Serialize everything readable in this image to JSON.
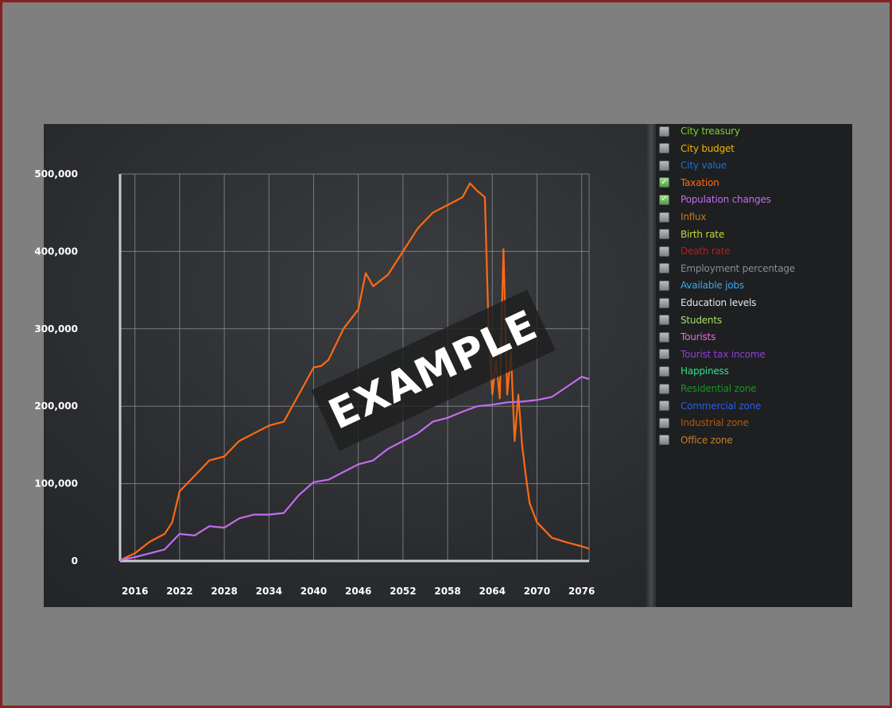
{
  "colors": {
    "frame_border": "#8a1f1f",
    "page_background": "#7f7f7f",
    "chart_background": "#2b2d30",
    "grid": "#8f9398",
    "axis": "#c8ccd0",
    "tick_text": "#ffffff"
  },
  "watermark": {
    "text": "EXAMPLE"
  },
  "legend": {
    "items": [
      {
        "label": "City treasury",
        "color": "#7ed321",
        "checked": false
      },
      {
        "label": "City budget",
        "color": "#f0b400",
        "checked": false
      },
      {
        "label": "City value",
        "color": "#1f6fd6",
        "checked": false
      },
      {
        "label": "Taxation",
        "color": "#ff6a13",
        "checked": true
      },
      {
        "label": "Population changes",
        "color": "#c36cf0",
        "checked": true
      },
      {
        "label": "Influx",
        "color": "#c97a10",
        "checked": false
      },
      {
        "label": "Birth rate",
        "color": "#c8d63a",
        "checked": false
      },
      {
        "label": "Death rate",
        "color": "#c0191d",
        "checked": false
      },
      {
        "label": "Employment percentage",
        "color": "#8a8f94",
        "checked": false
      },
      {
        "label": "Available jobs",
        "color": "#39a9f0",
        "checked": false
      },
      {
        "label": "Education levels",
        "color": "#e6e6e6",
        "checked": false
      },
      {
        "label": "Students",
        "color": "#a7e06a",
        "checked": false
      },
      {
        "label": "Tourists",
        "color": "#f06ad8",
        "checked": false
      },
      {
        "label": "Tourist tax income",
        "color": "#8e3fd1",
        "checked": false
      },
      {
        "label": "Happiness",
        "color": "#33e08c",
        "checked": false
      },
      {
        "label": "Residential zone",
        "color": "#1e8f2a",
        "checked": false
      },
      {
        "label": "Commercial zone",
        "color": "#2a5ee0",
        "checked": false
      },
      {
        "label": "Industrial zone",
        "color": "#b05a14",
        "checked": false
      },
      {
        "label": "Office zone",
        "color": "#c7802a",
        "checked": false
      }
    ]
  },
  "chart_data": {
    "type": "line",
    "title": "",
    "xlabel": "",
    "ylabel": "",
    "xlim": [
      2014,
      2077
    ],
    "ylim": [
      0,
      500000
    ],
    "x_ticks": [
      "2016",
      "2022",
      "2028",
      "2034",
      "2040",
      "2046",
      "2052",
      "2058",
      "2064",
      "2070",
      "2076"
    ],
    "y_ticks": [
      "0",
      "100,000",
      "200,000",
      "300,000",
      "400,000",
      "500,000"
    ],
    "grid": true,
    "legend_position": "right",
    "series": [
      {
        "name": "Taxation",
        "color": "#ff6a13",
        "x": [
          2014,
          2016,
          2018,
          2020,
          2021,
          2022,
          2024,
          2026,
          2028,
          2030,
          2032,
          2034,
          2036,
          2038,
          2040,
          2041,
          2042,
          2044,
          2046,
          2047,
          2048,
          2050,
          2052,
          2054,
          2056,
          2058,
          2060,
          2061,
          2062,
          2063,
          2063.5,
          2064,
          2064.5,
          2065,
          2065.5,
          2066,
          2066.5,
          2067,
          2067.5,
          2068,
          2068.5,
          2069,
          2070,
          2072,
          2074,
          2076,
          2077
        ],
        "y": [
          1000,
          10000,
          25000,
          35000,
          50000,
          90000,
          110000,
          130000,
          135000,
          155000,
          165000,
          175000,
          180000,
          215000,
          250000,
          252000,
          260000,
          300000,
          325000,
          372000,
          355000,
          370000,
          400000,
          430000,
          450000,
          460000,
          470000,
          488000,
          478000,
          470000,
          300000,
          215000,
          260000,
          210000,
          403000,
          215000,
          270000,
          155000,
          215000,
          150000,
          110000,
          75000,
          50000,
          30000,
          24000,
          19000,
          16000
        ]
      },
      {
        "name": "Population changes",
        "color": "#c36cf0",
        "x": [
          2014,
          2016,
          2018,
          2020,
          2022,
          2024,
          2026,
          2028,
          2030,
          2032,
          2034,
          2036,
          2038,
          2040,
          2042,
          2044,
          2046,
          2048,
          2050,
          2052,
          2054,
          2056,
          2058,
          2060,
          2062,
          2064,
          2066,
          2068,
          2070,
          2072,
          2074,
          2076,
          2077
        ],
        "y": [
          1000,
          5000,
          10000,
          15000,
          35000,
          33000,
          45000,
          43000,
          55000,
          60000,
          60000,
          62000,
          85000,
          102000,
          105000,
          115000,
          125000,
          130000,
          145000,
          155000,
          165000,
          180000,
          185000,
          193000,
          200000,
          202000,
          205000,
          206000,
          208000,
          212000,
          225000,
          238000,
          235000
        ]
      }
    ]
  }
}
